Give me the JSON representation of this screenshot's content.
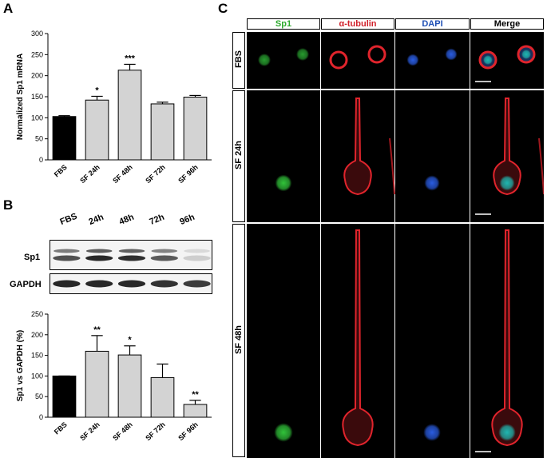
{
  "panels": {
    "a": "A",
    "b": "B",
    "c": "C"
  },
  "chart_data": [
    {
      "type": "bar",
      "panel": "A",
      "categories": [
        "FBS",
        "SF 24h",
        "SF 48h",
        "SF 72h",
        "SF 96h"
      ],
      "values": [
        103,
        142,
        213,
        133,
        149
      ],
      "errors": [
        2,
        9,
        14,
        4,
        4
      ],
      "significance": [
        "",
        "*",
        "***",
        "",
        ""
      ],
      "colors": [
        "#000000",
        "#d3d3d3",
        "#d3d3d3",
        "#d3d3d3",
        "#d3d3d3"
      ],
      "ylabel": "Normalized Sp1 mRNA",
      "ylim": [
        0,
        300
      ],
      "yticks": [
        0,
        50,
        100,
        150,
        200,
        250,
        300
      ],
      "xlabel": ""
    },
    {
      "type": "bar",
      "panel": "B",
      "categories": [
        "FBS",
        "SF 24h",
        "SF 48h",
        "SF 72h",
        "SF 96h"
      ],
      "values": [
        100,
        160,
        151,
        96,
        31
      ],
      "errors": [
        0,
        38,
        22,
        33,
        10
      ],
      "significance": [
        "",
        "**",
        "*",
        "",
        "**"
      ],
      "colors": [
        "#000000",
        "#d3d3d3",
        "#d3d3d3",
        "#d3d3d3",
        "#d3d3d3"
      ],
      "ylabel": "Sp1 vs GAPDH (%)",
      "ylim": [
        0,
        250
      ],
      "yticks": [
        0,
        50,
        100,
        150,
        200,
        250
      ],
      "xlabel": ""
    }
  ],
  "blot": {
    "lanes": [
      "FBS",
      "24h",
      "48h",
      "72h",
      "96h"
    ],
    "rows": [
      {
        "label": "Sp1",
        "intensity": [
          0.75,
          0.95,
          0.92,
          0.7,
          0.12
        ]
      },
      {
        "label": "GAPDH",
        "intensity": [
          0.95,
          0.95,
          0.95,
          0.9,
          0.85
        ]
      }
    ]
  },
  "microscopy": {
    "columns": [
      {
        "label": "Sp1",
        "color": "#2eaa2e"
      },
      {
        "label": "α-tubulin",
        "color": "#d0202a"
      },
      {
        "label": "DAPI",
        "color": "#1f4fb5"
      },
      {
        "label": "Merge",
        "color": "#000000"
      }
    ],
    "rows": [
      "FBS",
      "SF 24h",
      "SF 48h"
    ]
  }
}
